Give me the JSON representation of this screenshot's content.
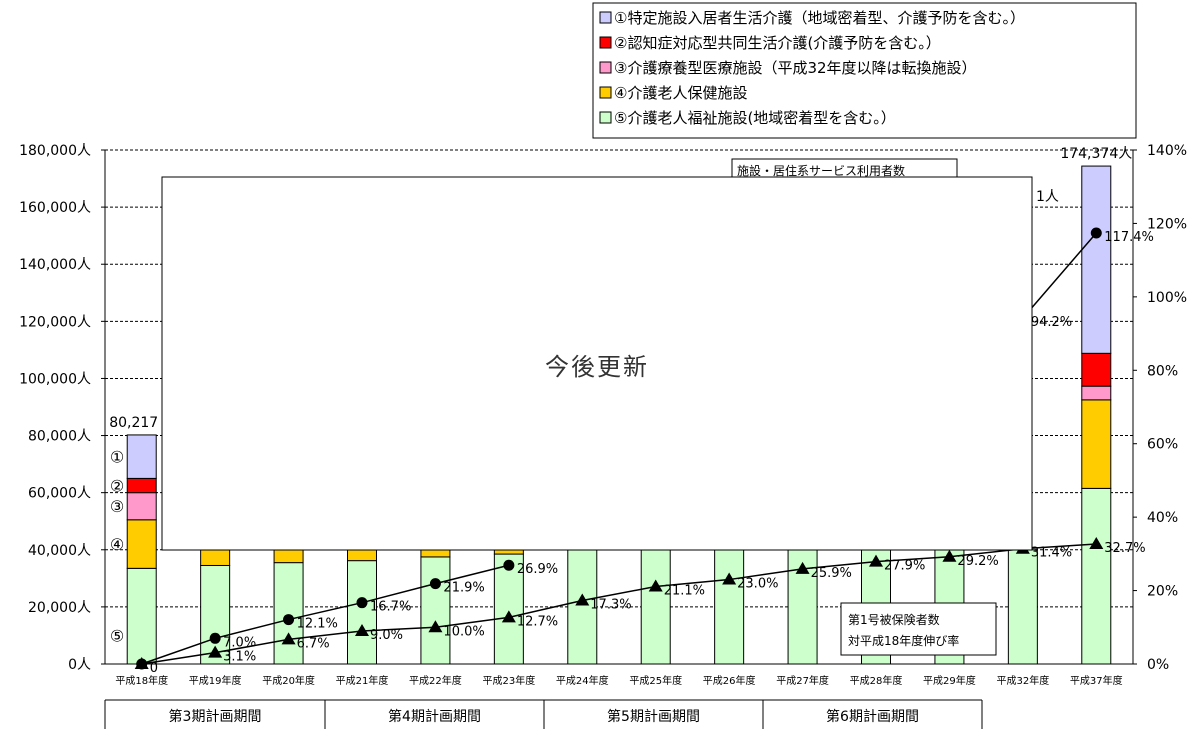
{
  "chart_data": {
    "type": "bar",
    "categories": [
      "平成18年度",
      "平成19年度",
      "平成20年度",
      "平成21年度",
      "平成22年度",
      "平成23年度",
      "平成24年度",
      "平成25年度",
      "平成26年度",
      "平成27年度",
      "平成28年度",
      "平成29年度",
      "平成32年度",
      "平成37年度"
    ],
    "y_left_ticks": [
      "0人",
      "20,000人",
      "40,000人",
      "60,000人",
      "80,000人",
      "100,000人",
      "120,000人",
      "140,000人",
      "160,000人",
      "180,000人"
    ],
    "y_right_ticks": [
      "0%",
      "20%",
      "40%",
      "60%",
      "80%",
      "100%",
      "120%",
      "140%"
    ],
    "ylim_left": [
      0,
      180000
    ],
    "ylim_right": [
      0,
      140
    ],
    "legend": [
      {
        "key": "s1",
        "label": "①特定施設入居者生活介護（地域密着型、介護予防を含む。）",
        "color": "#ccccff"
      },
      {
        "key": "s2",
        "label": "②認知症対応型共同生活介護(介護予防を含む。）",
        "color": "#ff0000"
      },
      {
        "key": "s3",
        "label": "③介護療養型医療施設（平成32年度以降は転換施設）",
        "color": "#ff99cc"
      },
      {
        "key": "s4",
        "label": "④介護老人保健施設",
        "color": "#ffcc00"
      },
      {
        "key": "s5",
        "label": "⑤介護老人福祉施設(地域密着型を含む。）",
        "color": "#ccffcc"
      }
    ],
    "bars": [
      {
        "category": "平成18年度",
        "s5": 33500,
        "s4": 17000,
        "s3": 9500,
        "s2": 5000,
        "s1": 15217,
        "total_label": "80,217"
      },
      {
        "category": "平成19年度",
        "s5": 34500,
        "s4": 16000
      },
      {
        "category": "平成20年度",
        "s5": 35500,
        "s4": 15000
      },
      {
        "category": "平成21年度",
        "s5": 36200,
        "s4": 14500
      },
      {
        "category": "平成22年度",
        "s5": 37500,
        "s4": 13000
      },
      {
        "category": "平成23年度",
        "s5": 38500,
        "s4": 12000
      },
      {
        "category": "平成24年度",
        "s5": 40000
      },
      {
        "category": "平成25年度",
        "s5": 40000
      },
      {
        "category": "平成26年度",
        "s5": 40000
      },
      {
        "category": "平成27年度",
        "s5": 40000
      },
      {
        "category": "平成28年度",
        "s5": 40000
      },
      {
        "category": "平成29年度",
        "s5": 40000
      },
      {
        "category": "平成32年度",
        "s5": 40000
      },
      {
        "category": "平成37年度",
        "s5": 61500,
        "s4": 31000,
        "s3": 4800,
        "s2": 11500,
        "s1": 65574,
        "total_label": "174,374人"
      }
    ],
    "series_line_circle": {
      "name": "施設・居住系サービス利用者数",
      "points": [
        {
          "i": 0,
          "value": 0,
          "label": "0"
        },
        {
          "i": 1,
          "value": 7.0,
          "label": "7.0%"
        },
        {
          "i": 2,
          "value": 12.1,
          "label": "12.1%"
        },
        {
          "i": 3,
          "value": 16.7,
          "label": "16.7%"
        },
        {
          "i": 4,
          "value": 21.9,
          "label": "21.9%"
        },
        {
          "i": 5,
          "value": 26.9,
          "label": "26.9%"
        },
        {
          "i": 12,
          "value": 94.2,
          "label": "94.2%"
        },
        {
          "i": 13,
          "value": 117.4,
          "label": "117.4%"
        }
      ]
    },
    "series_line_triangle": {
      "name": "第1号被保険者数 対平成18年度伸び率",
      "points": [
        {
          "i": 0,
          "value": 0,
          "label": ""
        },
        {
          "i": 1,
          "value": 3.1,
          "label": "3.1%"
        },
        {
          "i": 2,
          "value": 6.7,
          "label": "6.7%"
        },
        {
          "i": 3,
          "value": 9.0,
          "label": "9.0%"
        },
        {
          "i": 4,
          "value": 10.0,
          "label": "10.0%"
        },
        {
          "i": 5,
          "value": 12.7,
          "label": "12.7%"
        },
        {
          "i": 6,
          "value": 17.3,
          "label": "17.3%"
        },
        {
          "i": 7,
          "value": 21.1,
          "label": "21.1%"
        },
        {
          "i": 8,
          "value": 23.0,
          "label": "23.0%"
        },
        {
          "i": 9,
          "value": 25.9,
          "label": "25.9%"
        },
        {
          "i": 10,
          "value": 27.9,
          "label": "27.9%"
        },
        {
          "i": 11,
          "value": 29.2,
          "label": "29.2%"
        },
        {
          "i": 12,
          "value": 31.4,
          "label": "31.4%"
        },
        {
          "i": 13,
          "value": 32.7,
          "label": "32.7%"
        }
      ]
    },
    "stack_markers": [
      "①",
      "②",
      "③",
      "④",
      "⑤"
    ],
    "annotation_service": "施設・居住系サービス利用者数",
    "annotation_insured_line1": "第1号被保険者数",
    "annotation_insured_line2": "対平成18年度伸び率",
    "overlay_text": "今後更新",
    "partial_label": "1人",
    "periods": [
      "第3期計画期間",
      "第4期計画期間",
      "第5期計画期間",
      "第6期計画期間"
    ]
  }
}
